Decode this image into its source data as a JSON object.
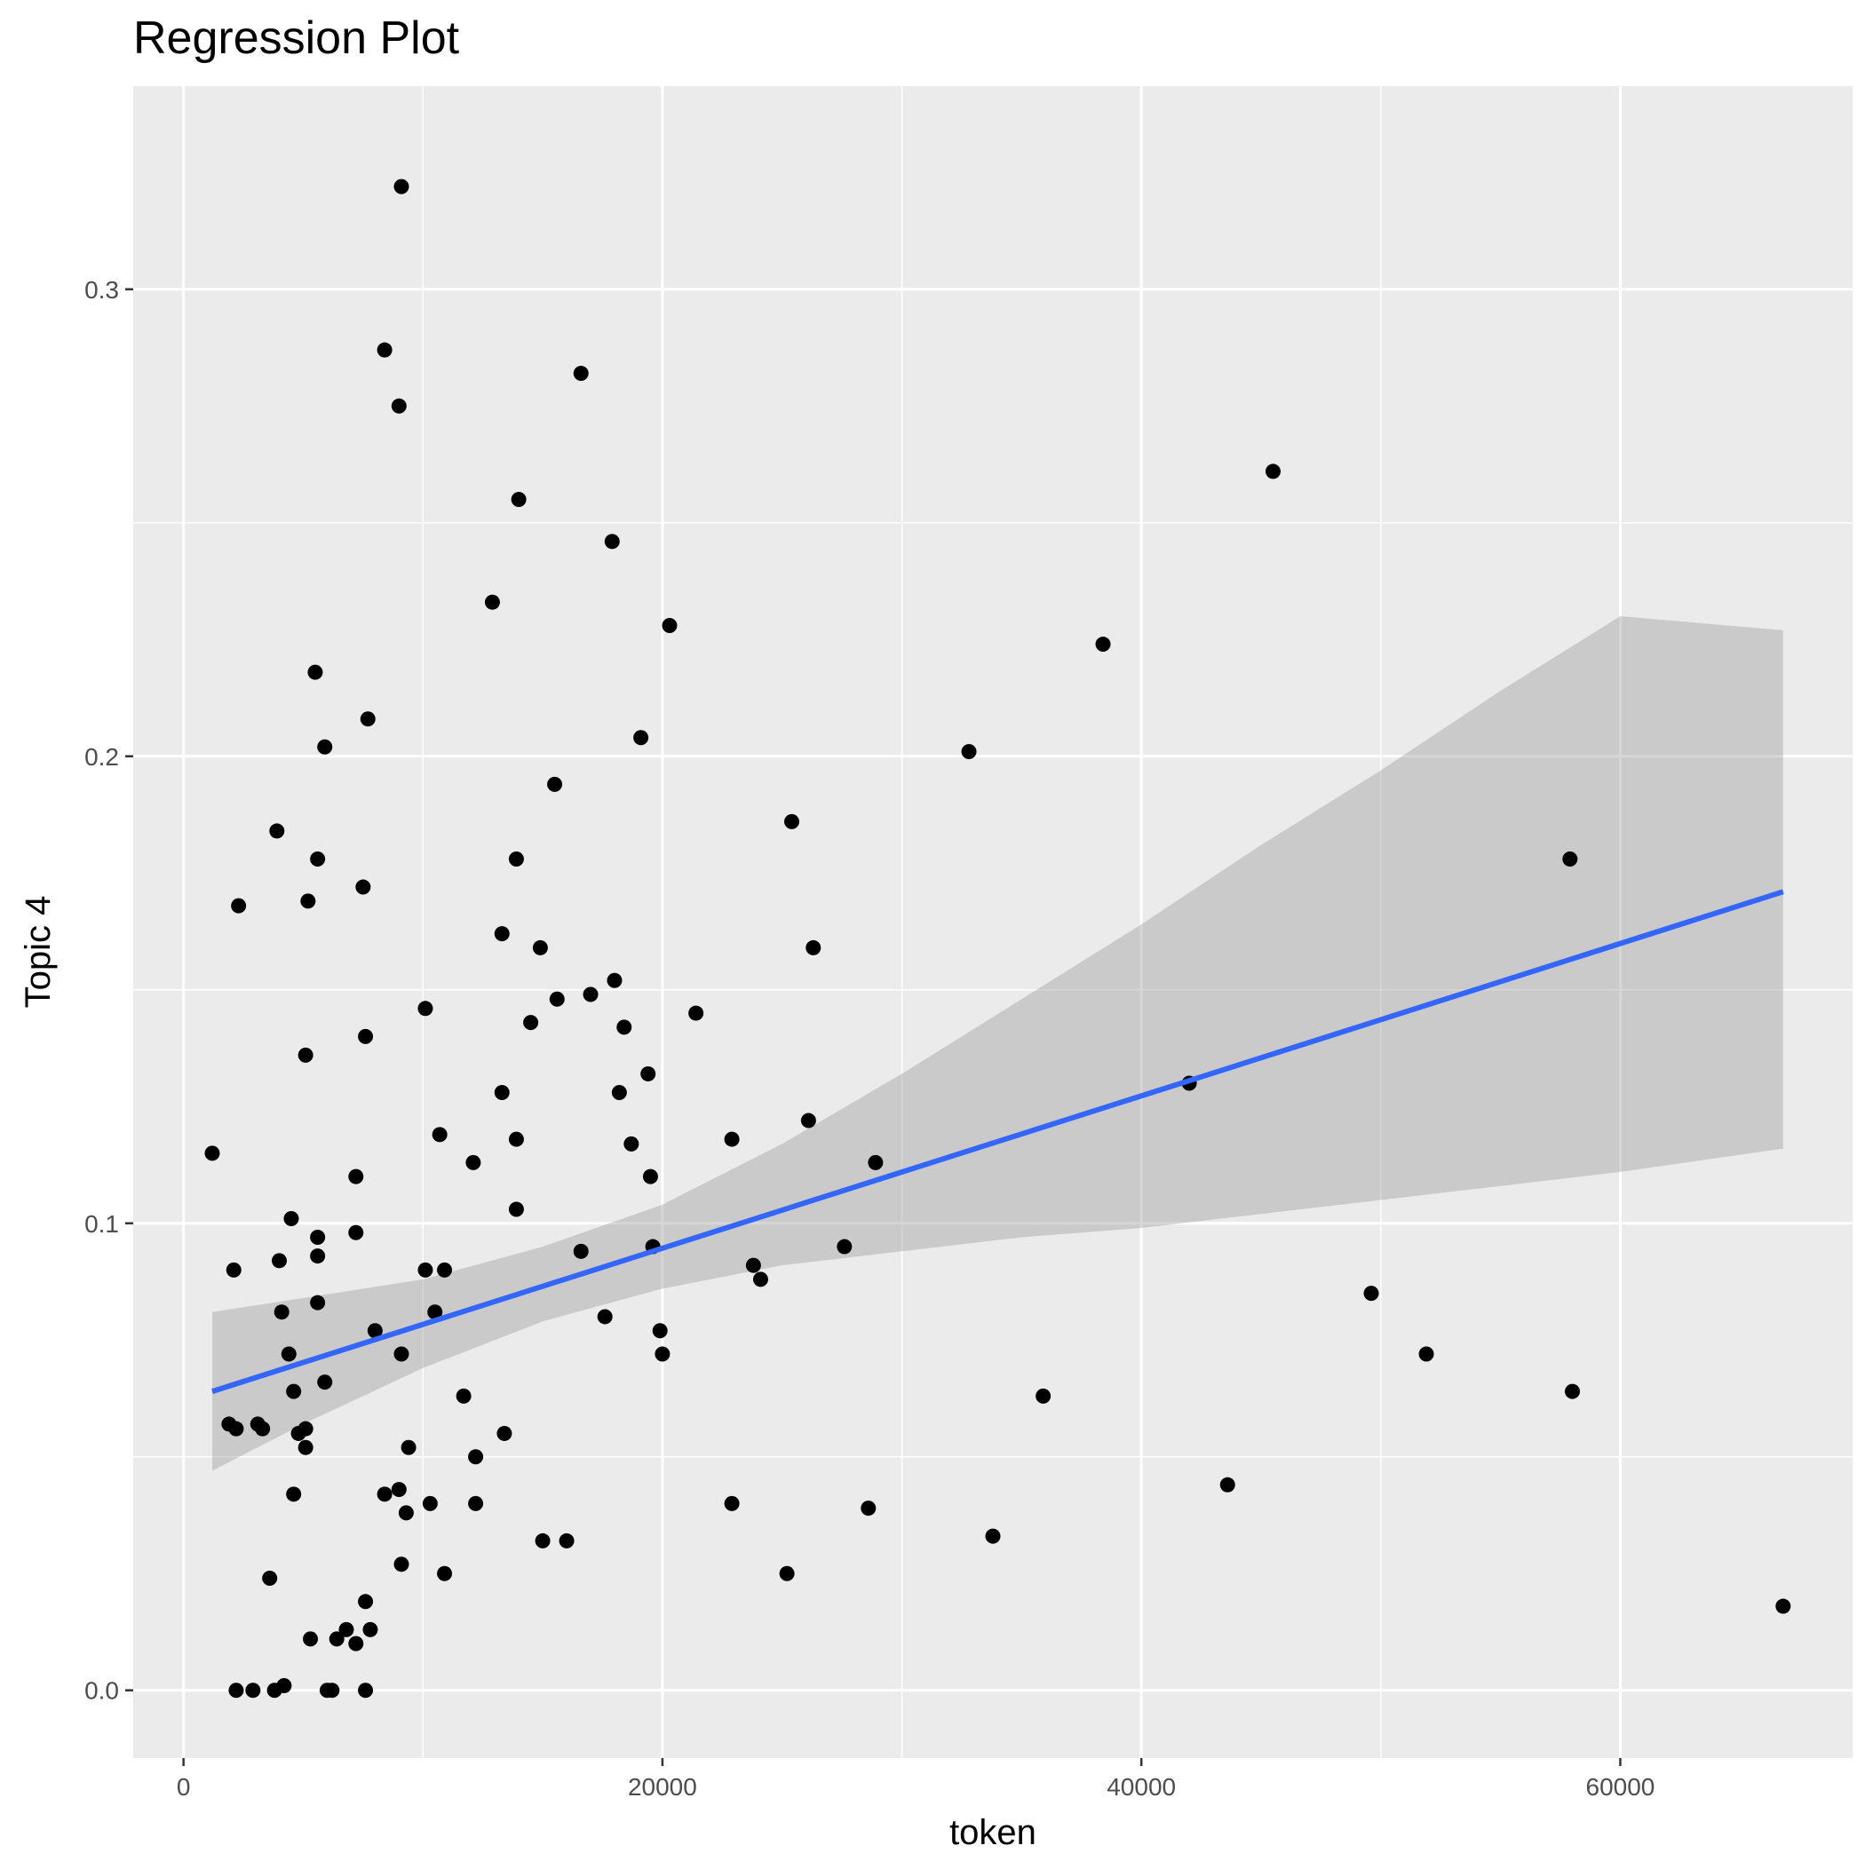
{
  "chart_data": {
    "type": "scatter",
    "title": "Regression Plot",
    "xlabel": "token",
    "ylabel": "Topic 4",
    "xlim": [
      -2100,
      69700
    ],
    "ylim": [
      -0.0145,
      0.3435
    ],
    "x_ticks": [
      0,
      20000,
      40000,
      60000
    ],
    "x_tick_labels": [
      "0",
      "20000",
      "40000",
      "60000"
    ],
    "y_ticks": [
      0.0,
      0.1,
      0.2,
      0.3
    ],
    "y_tick_labels": [
      "0.0",
      "0.1",
      "0.2",
      "0.3"
    ],
    "grid": true,
    "legend": "none",
    "colors": {
      "panel_background": "#ebebeb",
      "grid": "#ffffff",
      "points": "#000000",
      "regression_line": "#3366ff",
      "confidence_band": "#999999"
    },
    "regression": {
      "method": "lm",
      "x_range": [
        1200,
        66800
      ],
      "y_at_start": 0.064,
      "y_at_end": 0.171,
      "confidence_band": {
        "x": [
          1200,
          5000,
          10000,
          15000,
          20000,
          25000,
          30000,
          35000,
          40000,
          45000,
          50000,
          55000,
          60000,
          66800
        ],
        "lower": [
          0.047,
          0.057,
          0.069,
          0.079,
          0.086,
          0.091,
          0.094,
          0.097,
          0.099,
          0.102,
          0.105,
          0.108,
          0.111,
          0.116
        ],
        "upper": [
          0.081,
          0.084,
          0.088,
          0.095,
          0.104,
          0.117,
          0.132,
          0.148,
          0.164,
          0.181,
          0.197,
          0.214,
          0.23,
          0.227
        ]
      }
    },
    "points": [
      {
        "x": 9100,
        "y": 0.322
      },
      {
        "x": 8400,
        "y": 0.287
      },
      {
        "x": 9000,
        "y": 0.275
      },
      {
        "x": 16600,
        "y": 0.282
      },
      {
        "x": 14000,
        "y": 0.255
      },
      {
        "x": 17900,
        "y": 0.246
      },
      {
        "x": 12900,
        "y": 0.233
      },
      {
        "x": 20300,
        "y": 0.228
      },
      {
        "x": 5500,
        "y": 0.218
      },
      {
        "x": 7700,
        "y": 0.208
      },
      {
        "x": 5900,
        "y": 0.202
      },
      {
        "x": 19100,
        "y": 0.204
      },
      {
        "x": 15500,
        "y": 0.194
      },
      {
        "x": 3900,
        "y": 0.184
      },
      {
        "x": 5600,
        "y": 0.178
      },
      {
        "x": 13900,
        "y": 0.178
      },
      {
        "x": 7500,
        "y": 0.172
      },
      {
        "x": 5200,
        "y": 0.169
      },
      {
        "x": 2300,
        "y": 0.168
      },
      {
        "x": 13300,
        "y": 0.162
      },
      {
        "x": 14900,
        "y": 0.159
      },
      {
        "x": 18000,
        "y": 0.152
      },
      {
        "x": 17000,
        "y": 0.149
      },
      {
        "x": 15600,
        "y": 0.148
      },
      {
        "x": 10100,
        "y": 0.146
      },
      {
        "x": 21400,
        "y": 0.145
      },
      {
        "x": 14500,
        "y": 0.143
      },
      {
        "x": 18400,
        "y": 0.142
      },
      {
        "x": 7600,
        "y": 0.14
      },
      {
        "x": 5100,
        "y": 0.136
      },
      {
        "x": 19400,
        "y": 0.132
      },
      {
        "x": 13300,
        "y": 0.128
      },
      {
        "x": 18200,
        "y": 0.128
      },
      {
        "x": 10700,
        "y": 0.119
      },
      {
        "x": 13900,
        "y": 0.118
      },
      {
        "x": 18700,
        "y": 0.117
      },
      {
        "x": 1200,
        "y": 0.115
      },
      {
        "x": 12100,
        "y": 0.113
      },
      {
        "x": 7200,
        "y": 0.11
      },
      {
        "x": 19500,
        "y": 0.11
      },
      {
        "x": 13900,
        "y": 0.103
      },
      {
        "x": 4500,
        "y": 0.101
      },
      {
        "x": 5600,
        "y": 0.097
      },
      {
        "x": 7200,
        "y": 0.098
      },
      {
        "x": 5600,
        "y": 0.093
      },
      {
        "x": 4000,
        "y": 0.092
      },
      {
        "x": 2100,
        "y": 0.09
      },
      {
        "x": 10100,
        "y": 0.09
      },
      {
        "x": 10900,
        "y": 0.09
      },
      {
        "x": 5600,
        "y": 0.083
      },
      {
        "x": 4100,
        "y": 0.081
      },
      {
        "x": 10500,
        "y": 0.081
      },
      {
        "x": 8000,
        "y": 0.077
      },
      {
        "x": 4400,
        "y": 0.072
      },
      {
        "x": 9100,
        "y": 0.072
      },
      {
        "x": 19900,
        "y": 0.077
      },
      {
        "x": 20000,
        "y": 0.072
      },
      {
        "x": 5900,
        "y": 0.066
      },
      {
        "x": 4600,
        "y": 0.064
      },
      {
        "x": 11700,
        "y": 0.063
      },
      {
        "x": 1900,
        "y": 0.057
      },
      {
        "x": 2200,
        "y": 0.056
      },
      {
        "x": 3100,
        "y": 0.057
      },
      {
        "x": 3300,
        "y": 0.056
      },
      {
        "x": 4800,
        "y": 0.055
      },
      {
        "x": 5100,
        "y": 0.056
      },
      {
        "x": 13400,
        "y": 0.055
      },
      {
        "x": 5100,
        "y": 0.052
      },
      {
        "x": 9400,
        "y": 0.052
      },
      {
        "x": 12200,
        "y": 0.05
      },
      {
        "x": 4600,
        "y": 0.042
      },
      {
        "x": 8400,
        "y": 0.042
      },
      {
        "x": 9000,
        "y": 0.043
      },
      {
        "x": 10300,
        "y": 0.04
      },
      {
        "x": 12200,
        "y": 0.04
      },
      {
        "x": 9300,
        "y": 0.038
      },
      {
        "x": 15000,
        "y": 0.032
      },
      {
        "x": 16000,
        "y": 0.032
      },
      {
        "x": 9100,
        "y": 0.027
      },
      {
        "x": 10900,
        "y": 0.025
      },
      {
        "x": 3600,
        "y": 0.024
      },
      {
        "x": 7600,
        "y": 0.019
      },
      {
        "x": 6800,
        "y": 0.013
      },
      {
        "x": 7800,
        "y": 0.013
      },
      {
        "x": 5300,
        "y": 0.011
      },
      {
        "x": 6400,
        "y": 0.011
      },
      {
        "x": 7200,
        "y": 0.01
      },
      {
        "x": 2200,
        "y": 0.0
      },
      {
        "x": 2900,
        "y": 0.0
      },
      {
        "x": 3800,
        "y": 0.0
      },
      {
        "x": 4200,
        "y": 0.001
      },
      {
        "x": 6000,
        "y": 0.0
      },
      {
        "x": 6200,
        "y": 0.0
      },
      {
        "x": 7600,
        "y": 0.0
      },
      {
        "x": 16600,
        "y": 0.094
      },
      {
        "x": 17600,
        "y": 0.08
      },
      {
        "x": 19600,
        "y": 0.095
      },
      {
        "x": 22900,
        "y": 0.118
      },
      {
        "x": 23800,
        "y": 0.091
      },
      {
        "x": 24100,
        "y": 0.088
      },
      {
        "x": 25400,
        "y": 0.186
      },
      {
        "x": 26100,
        "y": 0.122
      },
      {
        "x": 26300,
        "y": 0.159
      },
      {
        "x": 27600,
        "y": 0.095
      },
      {
        "x": 28900,
        "y": 0.113
      },
      {
        "x": 22900,
        "y": 0.04
      },
      {
        "x": 25200,
        "y": 0.025
      },
      {
        "x": 28600,
        "y": 0.039
      },
      {
        "x": 32800,
        "y": 0.201
      },
      {
        "x": 33800,
        "y": 0.033
      },
      {
        "x": 35900,
        "y": 0.063
      },
      {
        "x": 38400,
        "y": 0.224
      },
      {
        "x": 42000,
        "y": 0.13
      },
      {
        "x": 43600,
        "y": 0.044
      },
      {
        "x": 45500,
        "y": 0.261
      },
      {
        "x": 49600,
        "y": 0.085
      },
      {
        "x": 51900,
        "y": 0.072
      },
      {
        "x": 57900,
        "y": 0.178
      },
      {
        "x": 58000,
        "y": 0.064
      },
      {
        "x": 66800,
        "y": 0.018
      }
    ]
  }
}
